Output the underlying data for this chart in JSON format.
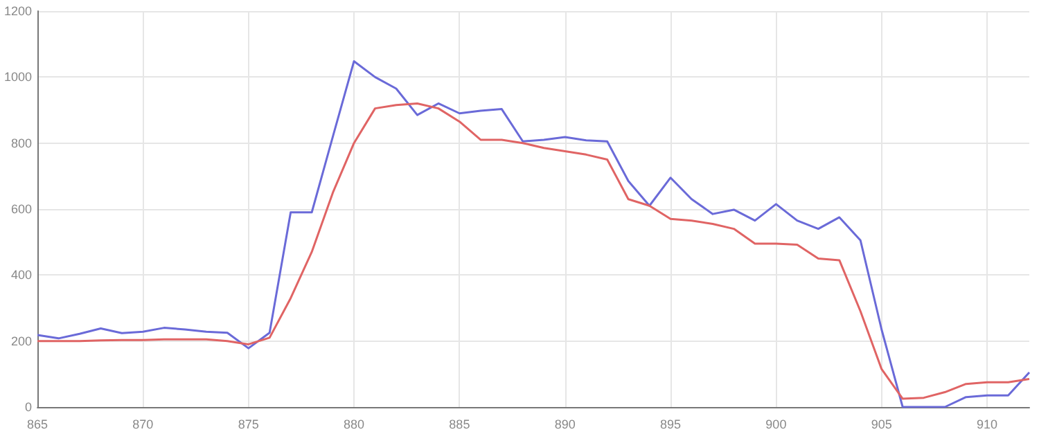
{
  "chart_data": {
    "type": "line",
    "x": [
      865,
      866,
      867,
      868,
      869,
      870,
      871,
      872,
      873,
      874,
      875,
      876,
      877,
      878,
      879,
      880,
      881,
      882,
      883,
      884,
      885,
      886,
      887,
      888,
      889,
      890,
      891,
      892,
      893,
      894,
      895,
      896,
      897,
      898,
      899,
      900,
      901,
      902,
      903,
      904,
      905,
      906,
      907,
      908,
      909,
      910,
      911,
      912
    ],
    "series": [
      {
        "color": "#6a6ad8",
        "values": [
          218,
          208,
          222,
          238,
          224,
          228,
          240,
          235,
          228,
          225,
          178,
          225,
          590,
          590,
          820,
          1048,
          1000,
          965,
          885,
          920,
          890,
          898,
          903,
          805,
          810,
          818,
          808,
          805,
          685,
          610,
          695,
          630,
          585,
          598,
          565,
          615,
          565,
          540,
          575,
          505,
          235,
          0,
          0,
          0,
          30,
          35,
          35,
          105
        ]
      },
      {
        "color": "#e06464",
        "values": [
          200,
          200,
          200,
          202,
          203,
          203,
          205,
          205,
          205,
          200,
          190,
          210,
          330,
          470,
          650,
          800,
          905,
          915,
          920,
          905,
          865,
          810,
          810,
          800,
          785,
          775,
          765,
          750,
          630,
          610,
          570,
          565,
          555,
          540,
          495,
          495,
          492,
          450,
          445,
          290,
          115,
          25,
          28,
          45,
          70,
          75,
          75,
          85
        ]
      }
    ],
    "xlim": [
      865,
      912
    ],
    "xticks": [
      865,
      870,
      875,
      880,
      885,
      890,
      895,
      900,
      905,
      910
    ],
    "ylim": [
      0,
      1200
    ],
    "yticks": [
      0,
      200,
      400,
      600,
      800,
      1000,
      1200
    ],
    "grid": true,
    "marker": "none",
    "line_style": "solid"
  }
}
